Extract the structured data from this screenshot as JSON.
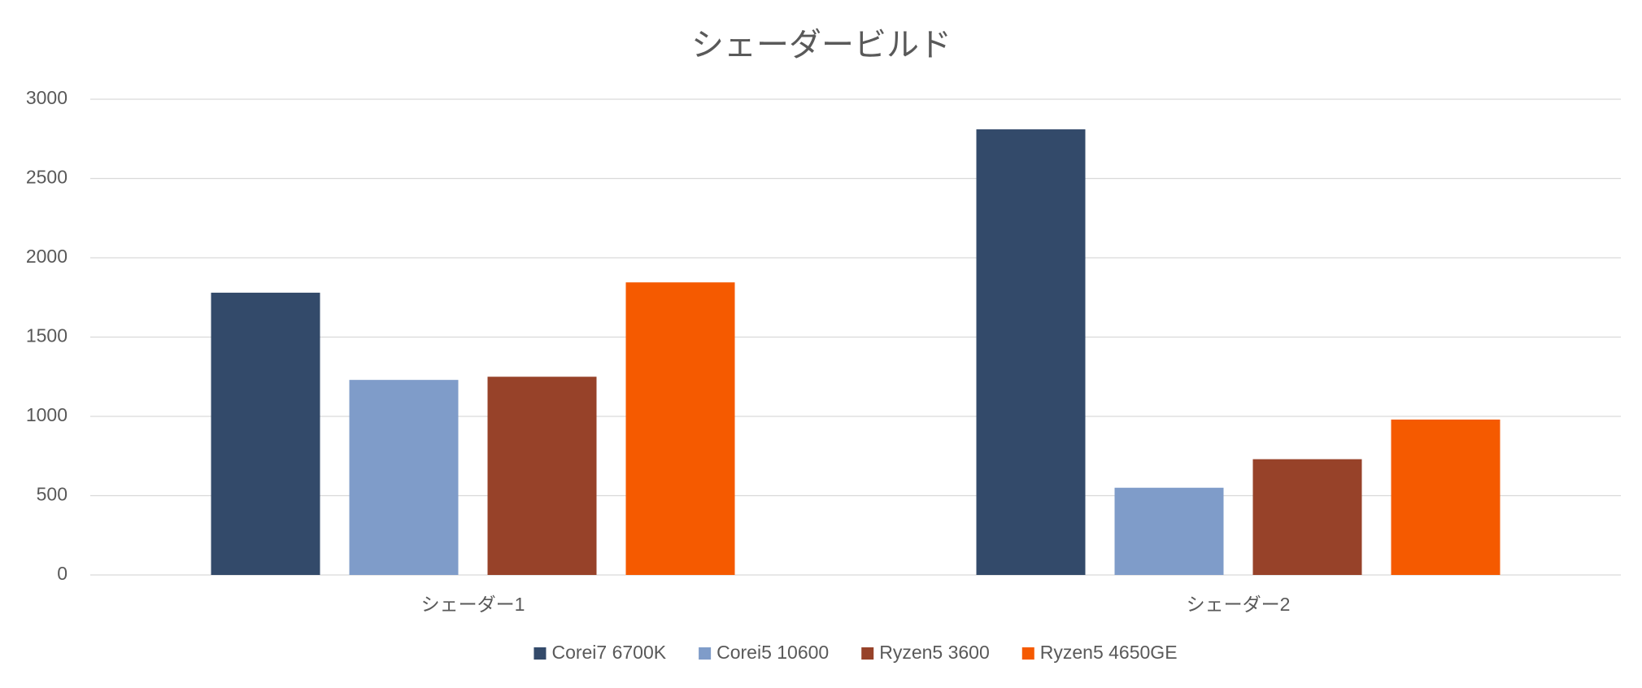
{
  "chart_data": {
    "type": "bar",
    "title": "シェーダービルド",
    "categories": [
      "シェーダー1",
      "シェーダー2"
    ],
    "series": [
      {
        "name": "Corei7 6700K",
        "color": "#334a6a",
        "values": [
          1780,
          2810
        ]
      },
      {
        "name": "Corei5 10600",
        "color": "#7f9cc9",
        "values": [
          1230,
          550
        ]
      },
      {
        "name": "Ryzen5 3600",
        "color": "#974229",
        "values": [
          1250,
          730
        ]
      },
      {
        "name": "Ryzen5 4650GE",
        "color": "#f55a00",
        "values": [
          1845,
          980
        ]
      }
    ],
    "ylim": [
      0,
      3000
    ],
    "yticks": [
      0,
      500,
      1000,
      1500,
      2000,
      2500,
      3000
    ],
    "grid": true,
    "legend": "bottom"
  }
}
